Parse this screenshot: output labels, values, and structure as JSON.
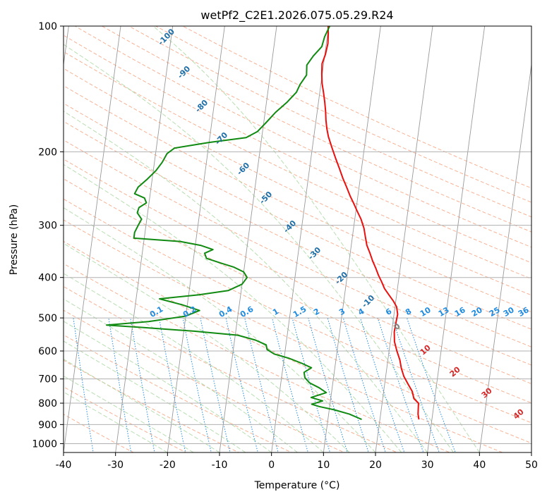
{
  "chart_data": {
    "type": "line",
    "title": "wetPf2_C2E1.2026.075.05.29.R24",
    "xlabel": "Temperature (°C)",
    "ylabel": "Pressure (hPa)",
    "xlim": [
      -40,
      50
    ],
    "ylim": [
      1050,
      100
    ],
    "y_scale": "log",
    "grid": true,
    "x_ticks": [
      -40,
      -30,
      -20,
      -10,
      0,
      10,
      20,
      30,
      40,
      50
    ],
    "y_ticks": [
      100,
      200,
      300,
      400,
      500,
      600,
      700,
      800,
      900,
      1000
    ],
    "colors": {
      "temperature": "#e8110f",
      "dewpoint": "#118a11",
      "dry_adiabat": "#f4a582",
      "moist_adiabat": "#a6d69d",
      "mixing_ratio": "#1f8be0",
      "isotherm": "#7f7f7f",
      "dry_adiabat_label": "#d62728",
      "mixing_label": "#1f8be0",
      "isotherm_label": "#1f6fa8"
    },
    "series": [
      {
        "key": "temperature",
        "points": [
          [
            27.5,
            875
          ],
          [
            27.2,
            850
          ],
          [
            27.0,
            800
          ],
          [
            26.0,
            780
          ],
          [
            25.5,
            750
          ],
          [
            24.5,
            720
          ],
          [
            23.5,
            690
          ],
          [
            22.8,
            660
          ],
          [
            22.3,
            630
          ],
          [
            21.5,
            600
          ],
          [
            20.8,
            570
          ],
          [
            20.5,
            540
          ],
          [
            20.6,
            510
          ],
          [
            20.7,
            490
          ],
          [
            20.3,
            470
          ],
          [
            19.5,
            455
          ],
          [
            18.5,
            440
          ],
          [
            17.5,
            425
          ],
          [
            16.8,
            410
          ],
          [
            16.0,
            395
          ],
          [
            15.3,
            380
          ],
          [
            14.5,
            365
          ],
          [
            13.8,
            350
          ],
          [
            13.0,
            335
          ],
          [
            12.5,
            320
          ],
          [
            12.0,
            305
          ],
          [
            11.2,
            290
          ],
          [
            10.3,
            278
          ],
          [
            9.4,
            266
          ],
          [
            8.5,
            255
          ],
          [
            7.6,
            243
          ],
          [
            6.7,
            232
          ],
          [
            5.8,
            220
          ],
          [
            4.8,
            208
          ],
          [
            3.8,
            196
          ],
          [
            2.8,
            184
          ],
          [
            2.3,
            176
          ],
          [
            1.9,
            168
          ],
          [
            1.6,
            160
          ],
          [
            1.2,
            152
          ],
          [
            0.7,
            144
          ],
          [
            0.2,
            137
          ],
          [
            -0.1,
            130
          ],
          [
            -0.3,
            123
          ],
          [
            0.1,
            117
          ],
          [
            0.3,
            110
          ],
          [
            0.1,
            104
          ],
          [
            -0.1,
            100
          ]
        ]
      },
      {
        "key": "dewpoint",
        "points": [
          [
            16.5,
            875
          ],
          [
            14.0,
            850
          ],
          [
            11.0,
            830
          ],
          [
            8.0,
            815
          ],
          [
            6.5,
            805
          ],
          [
            8.5,
            790
          ],
          [
            6.2,
            775
          ],
          [
            9.0,
            755
          ],
          [
            7.5,
            735
          ],
          [
            5.5,
            715
          ],
          [
            4.5,
            695
          ],
          [
            4.2,
            675
          ],
          [
            5.5,
            658
          ],
          [
            3.5,
            642
          ],
          [
            1.0,
            625
          ],
          [
            -2.0,
            610
          ],
          [
            -3.5,
            595
          ],
          [
            -3.8,
            580
          ],
          [
            -6.0,
            565
          ],
          [
            -9.5,
            550
          ],
          [
            -18.0,
            538
          ],
          [
            -28.0,
            527
          ],
          [
            -35.0,
            520
          ],
          [
            -27.0,
            510
          ],
          [
            -20.0,
            495
          ],
          [
            -17.5,
            480
          ],
          [
            -21.0,
            465
          ],
          [
            -25.5,
            450
          ],
          [
            -18.0,
            440
          ],
          [
            -12.5,
            430
          ],
          [
            -10.0,
            415
          ],
          [
            -9.2,
            400
          ],
          [
            -10.0,
            388
          ],
          [
            -12.0,
            378
          ],
          [
            -14.5,
            370
          ],
          [
            -17.5,
            360
          ],
          [
            -18.0,
            350
          ],
          [
            -16.5,
            343
          ],
          [
            -19.0,
            335
          ],
          [
            -23.0,
            328
          ],
          [
            -32.0,
            322
          ],
          [
            -32.0,
            312
          ],
          [
            -31.5,
            300
          ],
          [
            -31.0,
            290
          ],
          [
            -32.0,
            280
          ],
          [
            -31.8,
            272
          ],
          [
            -30.5,
            265
          ],
          [
            -31.0,
            258
          ],
          [
            -33.0,
            252
          ],
          [
            -32.5,
            243
          ],
          [
            -31.0,
            233
          ],
          [
            -29.5,
            222
          ],
          [
            -28.5,
            212
          ],
          [
            -27.8,
            202
          ],
          [
            -26.5,
            196
          ],
          [
            -20.0,
            190
          ],
          [
            -13.0,
            185
          ],
          [
            -11.0,
            179
          ],
          [
            -9.5,
            170
          ],
          [
            -8.0,
            161
          ],
          [
            -6.0,
            152
          ],
          [
            -4.5,
            144
          ],
          [
            -4.0,
            138
          ],
          [
            -3.0,
            131
          ],
          [
            -3.2,
            124
          ],
          [
            -2.2,
            118
          ],
          [
            -0.8,
            112
          ],
          [
            -0.5,
            106
          ],
          [
            0.2,
            100
          ]
        ]
      }
    ],
    "isotherm_labels": [
      "-100",
      "-90",
      "-80",
      "-70",
      "-60",
      "-50",
      "-40",
      "-30",
      "-20",
      "-10"
    ],
    "mixing_ratio_labels": [
      "0.1",
      "0.2",
      "0.4",
      "0.6",
      "1",
      "1.5",
      "2",
      "3",
      "4",
      "6",
      "8",
      "10",
      "13",
      "16",
      "20",
      "25",
      "30",
      "36"
    ],
    "dry_adiabat_labels": [
      "0",
      "10",
      "20",
      "30",
      "40"
    ]
  }
}
